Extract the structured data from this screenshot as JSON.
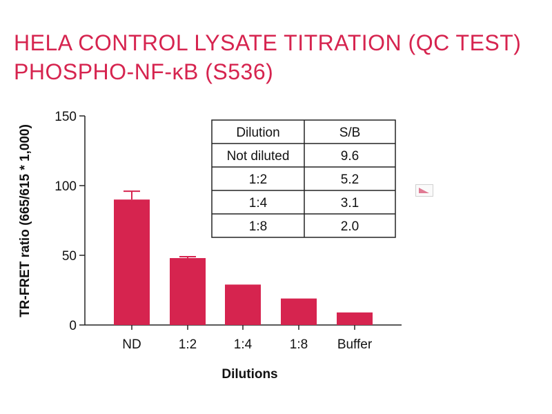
{
  "title_line1": "HELA CONTROL LYSATE TITRATION (QC TEST)",
  "title_line2": "PHOSPHO-NF-κB (S536)",
  "accent_color": "#d6244f",
  "bar_color": "#d6244f",
  "icon": "chart-thumbnail-icon",
  "chart_data": {
    "type": "bar",
    "categories": [
      "ND",
      "1:2",
      "1:4",
      "1:8",
      "Buffer"
    ],
    "values": [
      90,
      48,
      29,
      19,
      9
    ],
    "errors": [
      6,
      1,
      0,
      0,
      0
    ],
    "ylabel": "TR-FRET ratio (665/615 * 1,000)",
    "xlabel": "Dilutions",
    "ylim": [
      0,
      150
    ],
    "yticks": [
      0,
      50,
      100,
      150
    ],
    "legend": "none",
    "grid": false
  },
  "table": {
    "headers": [
      "Dilution",
      "S/B"
    ],
    "rows": [
      [
        "Not diluted",
        "9.6"
      ],
      [
        "1:2",
        "5.2"
      ],
      [
        "1:4",
        "3.1"
      ],
      [
        "1:8",
        "2.0"
      ]
    ]
  }
}
